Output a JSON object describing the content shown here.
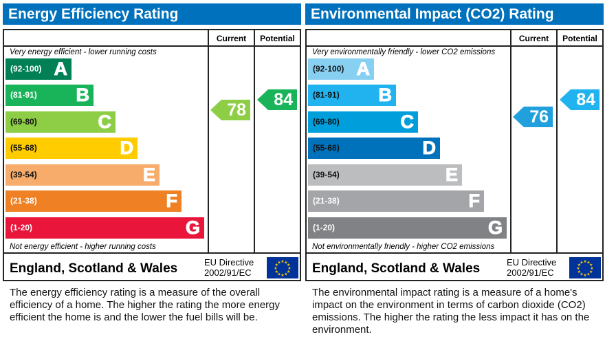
{
  "chart_data": [
    {
      "type": "bar",
      "title": "Energy Efficiency Rating",
      "columns": [
        "Current",
        "Potential"
      ],
      "top_note": "Very energy efficient - lower running costs",
      "bottom_note": "Not energy efficient - higher running costs",
      "bands": [
        {
          "range": "(92-100)",
          "letter": "A",
          "color": "#008054"
        },
        {
          "range": "(81-91)",
          "letter": "B",
          "color": "#19b459"
        },
        {
          "range": "(69-80)",
          "letter": "C",
          "color": "#8dce46"
        },
        {
          "range": "(55-68)",
          "letter": "D",
          "color": "#ffcc00"
        },
        {
          "range": "(39-54)",
          "letter": "E",
          "color": "#f7ac6b"
        },
        {
          "range": "(21-38)",
          "letter": "F",
          "color": "#ef8023"
        },
        {
          "range": "(1-20)",
          "letter": "G",
          "color": "#e9153b"
        }
      ],
      "current": {
        "value": 78,
        "band": "C",
        "color": "#8dce46"
      },
      "potential": {
        "value": 84,
        "band": "B",
        "color": "#19b459"
      },
      "footer": "England, Scotland & Wales",
      "directive_1": "EU Directive",
      "directive_2": "2002/91/EC",
      "description": "The energy efficiency rating is a measure of the overall efficiency of a home. The higher the rating the more energy efficient the home is and the lower the fuel bills will be."
    },
    {
      "type": "bar",
      "title": "Environmental Impact (CO2) Rating",
      "columns": [
        "Current",
        "Potential"
      ],
      "top_note": "Very environmentally friendly - lower CO2 emissions",
      "bottom_note": "Not environmentally friendly - higher CO2 emissions",
      "bands": [
        {
          "range": "(92-100)",
          "letter": "A",
          "color": "#88d0f2"
        },
        {
          "range": "(81-91)",
          "letter": "B",
          "color": "#20b3ef"
        },
        {
          "range": "(69-80)",
          "letter": "C",
          "color": "#009edb"
        },
        {
          "range": "(55-68)",
          "letter": "D",
          "color": "#0072bb"
        },
        {
          "range": "(39-54)",
          "letter": "E",
          "color": "#bbbdbf"
        },
        {
          "range": "(21-38)",
          "letter": "F",
          "color": "#a3a5a8"
        },
        {
          "range": "(1-20)",
          "letter": "G",
          "color": "#808285"
        }
      ],
      "current": {
        "value": 76,
        "band": "C",
        "color": "#20a0dc"
      },
      "potential": {
        "value": 84,
        "band": "B",
        "color": "#20b3ef"
      },
      "footer": "England, Scotland & Wales",
      "directive_1": "EU Directive",
      "directive_2": "2002/91/EC",
      "description": "The environmental impact rating is a measure of a home's impact on the environment in terms of carbon dioxide (CO2) emissions. The higher the rating the less impact it has on the environment."
    }
  ]
}
